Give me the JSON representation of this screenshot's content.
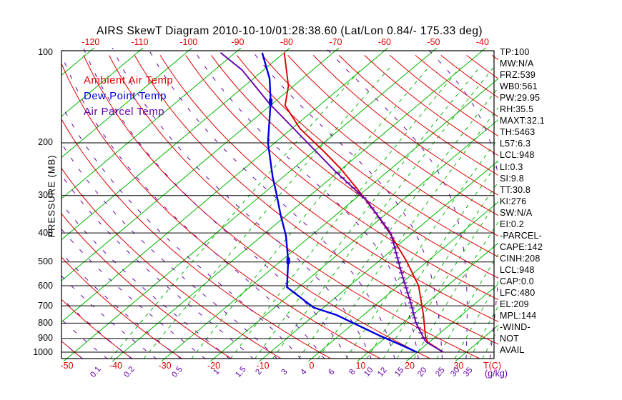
{
  "title": "AIRS SkewT Diagram 2010-10-10/01:28:38.60 (Lat/Lon 0.84/- 175.33 deg)",
  "legend": {
    "items": [
      {
        "label": "Ambient Air Temp",
        "color": "#e00000"
      },
      {
        "label": "Dew Point Temp",
        "color": "#0000e0"
      },
      {
        "label": "Air Parcel Temp",
        "color": "#6600aa"
      }
    ]
  },
  "axes": {
    "pressure_axis_label": "PRESSURE (MB)",
    "temp_axis_label": "T(C)",
    "mixing_axis_label": "(g/kg)",
    "pressure_ticks_mb": [
      100,
      200,
      300,
      400,
      500,
      600,
      700,
      800,
      900,
      1000
    ],
    "temp_ticks_top_C": [
      -120,
      -110,
      -100,
      -90,
      -80,
      -70,
      -60,
      -50,
      -40
    ],
    "temp_ticks_bottom_C": [
      -50,
      -40,
      -30,
      -20,
      -10,
      0,
      10,
      20,
      30
    ]
  },
  "stats_panel": {
    "lines": [
      "TP:100",
      "MW:N/A",
      "FRZ:539",
      "WB0:561",
      "PW:29.95",
      "RH:35.5",
      "MAXT:32.1",
      "TH:5463",
      "L57:6.3",
      "LCL:948",
      "LI:0.3",
      "SI:9.8",
      "TT:30.8",
      "KI:276",
      "SW:N/A",
      "EI:0.2",
      "-PARCEL-",
      "CAPE:142",
      "CINH:208",
      "LCL:948",
      "CAP:0.0",
      "LFC:480",
      "EL:209",
      "MPL:144",
      "-WIND-",
      "NOT",
      "AVAIL"
    ]
  },
  "colors": {
    "isotherm": "#00b800",
    "dry_adiabat": "#e00000",
    "moist_adiabat": "#6600aa",
    "mixing_ratio": "#00b800",
    "ambient": "#e00000",
    "dew_point": "#0000e0",
    "parcel": "#6600aa",
    "frame": "#000000"
  },
  "chart_data": {
    "type": "line",
    "title": "AIRS SkewT Diagram 2010-10-10/01:28:38.60 (Lat/Lon 0.84/- 175.33 deg)",
    "x_axis": {
      "label": "T(C)",
      "top_ticks_C": [
        -120,
        -110,
        -100,
        -90,
        -80,
        -70,
        -60,
        -50,
        -40
      ],
      "bottom_ticks_C": [
        -50,
        -40,
        -30,
        -20,
        -10,
        0,
        10,
        20,
        30
      ]
    },
    "y_axis": {
      "label": "PRESSURE (MB)",
      "scale": "log",
      "range_mb": [
        100,
        1050
      ],
      "ticks_mb": [
        100,
        200,
        300,
        400,
        500,
        600,
        700,
        800,
        900,
        1000
      ]
    },
    "grid": {
      "isotherms_C": {
        "min": -120,
        "max": 40,
        "step": 10
      },
      "dry_adiabats_theta_C": {
        "min": -60,
        "max": 180,
        "step": 10
      },
      "moist_adiabats_thetaw_C": {
        "min": -60,
        "max": 45,
        "step": 5
      },
      "mixing_ratio_g_kg": [
        0.1,
        0.2,
        0.5,
        1,
        1.5,
        2,
        3,
        4,
        6,
        8,
        10,
        12,
        15,
        20,
        25,
        30,
        35
      ]
    },
    "series": [
      {
        "name": "Ambient Air Temp",
        "color": "#e00000",
        "points_P_T": [
          [
            1000,
            25.3
          ],
          [
            926,
            19.7
          ],
          [
            893,
            18.1
          ],
          [
            749,
            12.1
          ],
          [
            600,
            4.1
          ],
          [
            495,
            -4.5
          ],
          [
            397,
            -15.0
          ],
          [
            346,
            -21.9
          ],
          [
            281,
            -32.7
          ],
          [
            243,
            -40.5
          ],
          [
            214,
            -47.8
          ],
          [
            179,
            -58.4
          ],
          [
            150,
            -67.0
          ],
          [
            129,
            -71.1
          ],
          [
            100,
            -80.0
          ]
        ]
      },
      {
        "name": "Dew Point Temp",
        "color": "#0000e0",
        "points_P_T": [
          [
            1000,
            19.9
          ],
          [
            946,
            14.9
          ],
          [
            881,
            8.3
          ],
          [
            813,
            1.3
          ],
          [
            751,
            -5.6
          ],
          [
            710,
            -12.0
          ],
          [
            607,
            -22.4
          ],
          [
            495,
            -28.6
          ],
          [
            409,
            -35.1
          ],
          [
            347,
            -41.4
          ],
          [
            294,
            -47.5
          ],
          [
            261,
            -52.0
          ],
          [
            200,
            -61.4
          ],
          [
            146,
            -70.8
          ],
          [
            122,
            -76.7
          ],
          [
            100,
            -84.5
          ]
        ]
      },
      {
        "name": "Air Parcel Temp",
        "color": "#6600aa",
        "points_P_T": [
          [
            1000,
            25.3
          ],
          [
            928,
            19.6
          ],
          [
            914,
            18.7
          ],
          [
            800,
            12.7
          ],
          [
            680,
            6.4
          ],
          [
            537,
            -3.0
          ],
          [
            402,
            -14.2
          ],
          [
            311,
            -27.3
          ],
          [
            249,
            -40.7
          ],
          [
            200,
            -53.3
          ],
          [
            148,
            -70.6
          ],
          [
            114,
            -84.5
          ],
          [
            100,
            -93.0
          ]
        ]
      }
    ],
    "dew_point_markers_P_T": [
      [
        146,
        -70.8
      ],
      [
        495,
        -28.6
      ]
    ]
  }
}
